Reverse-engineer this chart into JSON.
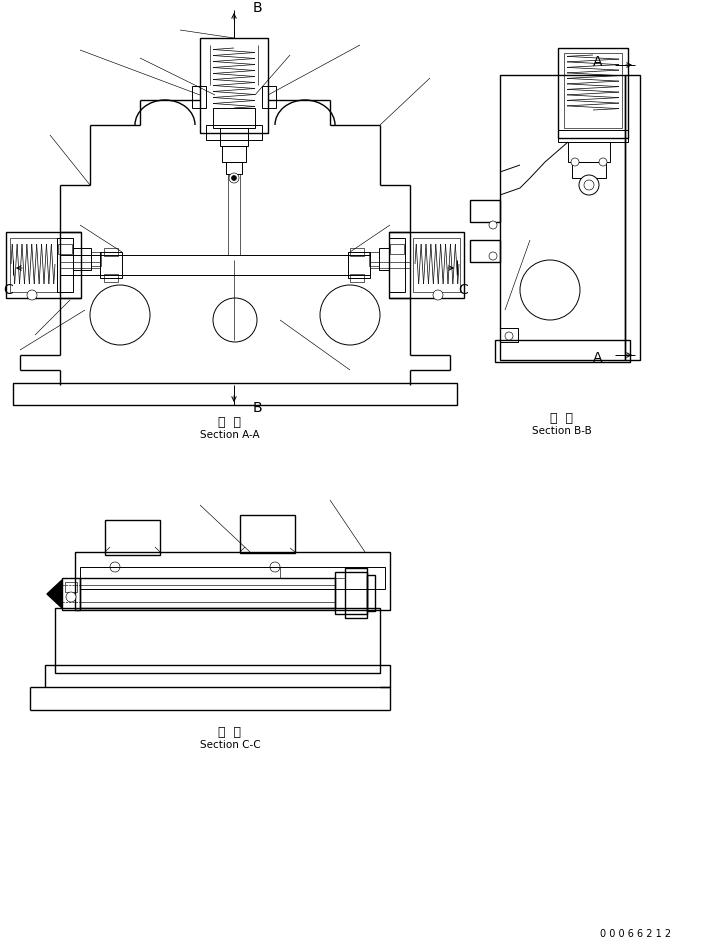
{
  "bg_color": "#ffffff",
  "line_color": "#000000",
  "fig_width": 7.26,
  "fig_height": 9.49,
  "dpi": 100,
  "section_aa_label_1": "断  面",
  "section_aa_label_2": "Section A-A",
  "section_bb_label_1": "断  面",
  "section_bb_label_2": "Section B-B",
  "section_cc_label_1": "断  面",
  "section_cc_label_2": "Section C-C",
  "drawing_number": "0 0 0 6 6 2 1 2"
}
